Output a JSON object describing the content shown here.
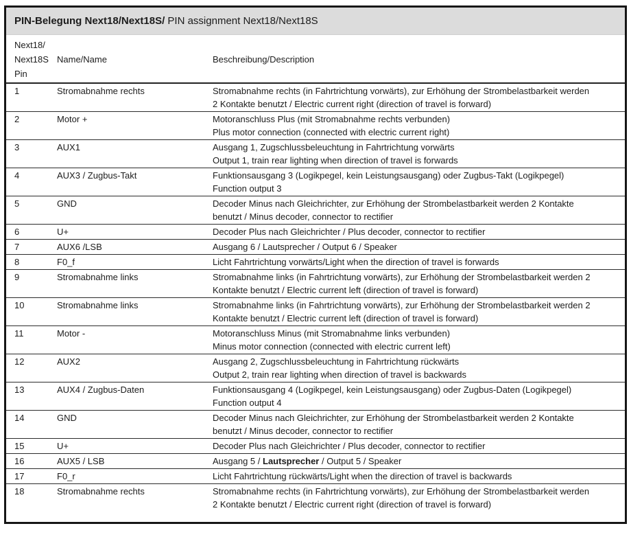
{
  "colors": {
    "title_band": "#dcdcdc",
    "outer_border": "#161616",
    "row_separator": "#2b2b2b",
    "text": "#1c1c1c"
  },
  "table": {
    "title": {
      "primary": "PIN-Belegung Next18/Next18S/",
      "secondary": " PIN assignment Next18/Next18S"
    },
    "header": {
      "pin_column_lines": [
        "Next18/",
        "Next18S",
        "Pin"
      ],
      "name_column": "Name/Name",
      "description_column": "Beschreibung/Description"
    },
    "rows": [
      {
        "pin": "1",
        "name": "Stromabnahme rechts",
        "description": [
          "Stromabnahme rechts (in Fahrtrichtung vorwärts), zur Erhöhung der Strombelastbarkeit werden",
          "2 Kontakte benutzt / Electric current right (direction of travel is forward)"
        ]
      },
      {
        "pin": "2",
        "name": "Motor +",
        "description": [
          "Motoranschluss Plus (mit Stromabnahme rechts verbunden)",
          "Plus motor connection (connected with electric current right)"
        ]
      },
      {
        "pin": "3",
        "name": "AUX1",
        "description": [
          "Ausgang 1, Zugschlussbeleuchtung in Fahrtrichtung vorwärts",
          "Output 1, train rear lighting when direction of travel is forwards"
        ]
      },
      {
        "pin": "4",
        "name": "AUX3 / Zugbus-Takt",
        "description": [
          "Funktionsausgang 3 (Logikpegel, kein Leistungsausgang) oder Zugbus-Takt (Logikpegel)",
          "Function output 3"
        ]
      },
      {
        "pin": "5",
        "name": "GND",
        "description": [
          "Decoder Minus nach Gleichrichter, zur Erhöhung der Strombelastbarkeit  werden 2 Kontakte",
          "benutzt / Minus decoder, connector to rectifier"
        ]
      },
      {
        "pin": "6",
        "name": "U+",
        "description": [
          "Decoder Plus nach Gleichrichter / Plus decoder, connector to rectifier"
        ]
      },
      {
        "pin": "7",
        "name": "AUX6 /LSB",
        "description": [
          "Ausgang 6 / Lautsprecher / Output 6 / Speaker"
        ]
      },
      {
        "pin": "8",
        "name": "F0_f",
        "description": [
          "Licht Fahrtrichtung vorwärts/Light when the direction of travel is forwards"
        ]
      },
      {
        "pin": "9",
        "name": "Stromabnahme links",
        "description": [
          "Stromabnahme links (in Fahrtrichtung vorwärts), zur Erhöhung der Strombelastbarkeit werden 2",
          "Kontakte benutzt / Electric current left (direction of travel is forward)"
        ]
      },
      {
        "pin": "10",
        "name": "Stromabnahme links",
        "description": [
          "Stromabnahme links (in Fahrtrichtung vorwärts), zur Erhöhung der Strombelastbarkeit werden 2",
          "Kontakte benutzt / Electric current left (direction of travel is forward)"
        ]
      },
      {
        "pin": "11",
        "name": "Motor -",
        "description": [
          "Motoranschluss Minus (mit Stromabnahme links verbunden)",
          "Minus motor connection (connected with electric current left)"
        ]
      },
      {
        "pin": "12",
        "name": "AUX2",
        "description": [
          "Ausgang 2, Zugschlussbeleuchtung in Fahrtrichtung rückwärts",
          "Output 2, train rear lighting when direction of travel is backwards"
        ]
      },
      {
        "pin": "13",
        "name": "AUX4 / Zugbus-Daten",
        "description": [
          "Funktionsausgang 4 (Logikpegel, kein Leistungsausgang) oder Zugbus-Daten (Logikpegel)",
          "Function output 4"
        ]
      },
      {
        "pin": "14",
        "name": "GND",
        "description": [
          "Decoder Minus nach Gleichrichter, zur Erhöhung der Strombelastbarkeit  werden 2 Kontakte",
          "benutzt / Minus decoder, connector to rectifier"
        ]
      },
      {
        "pin": "15",
        "name": "U+",
        "description": [
          "Decoder Plus nach Gleichrichter / Plus decoder, connector to rectifier"
        ]
      },
      {
        "pin": "16",
        "name": "AUX5 / LSB",
        "description": [
          [
            {
              "text": "Ausgang 5 / "
            },
            {
              "text": "Lautsprecher",
              "bold": true
            },
            {
              "text": " / Output 5 / Speaker"
            }
          ]
        ]
      },
      {
        "pin": "17",
        "name": "F0_r",
        "description": [
          "Licht Fahrtrichtung rückwärts/Light when the direction of travel is backwards"
        ]
      },
      {
        "pin": "18",
        "name": "Stromabnahme rechts",
        "description": [
          "Stromabnahme rechts (in Fahrtrichtung vorwärts), zur Erhöhung der Strombelastbarkeit werden",
          "2 Kontakte benutzt / Electric current right (direction of travel is forward)"
        ]
      }
    ]
  }
}
